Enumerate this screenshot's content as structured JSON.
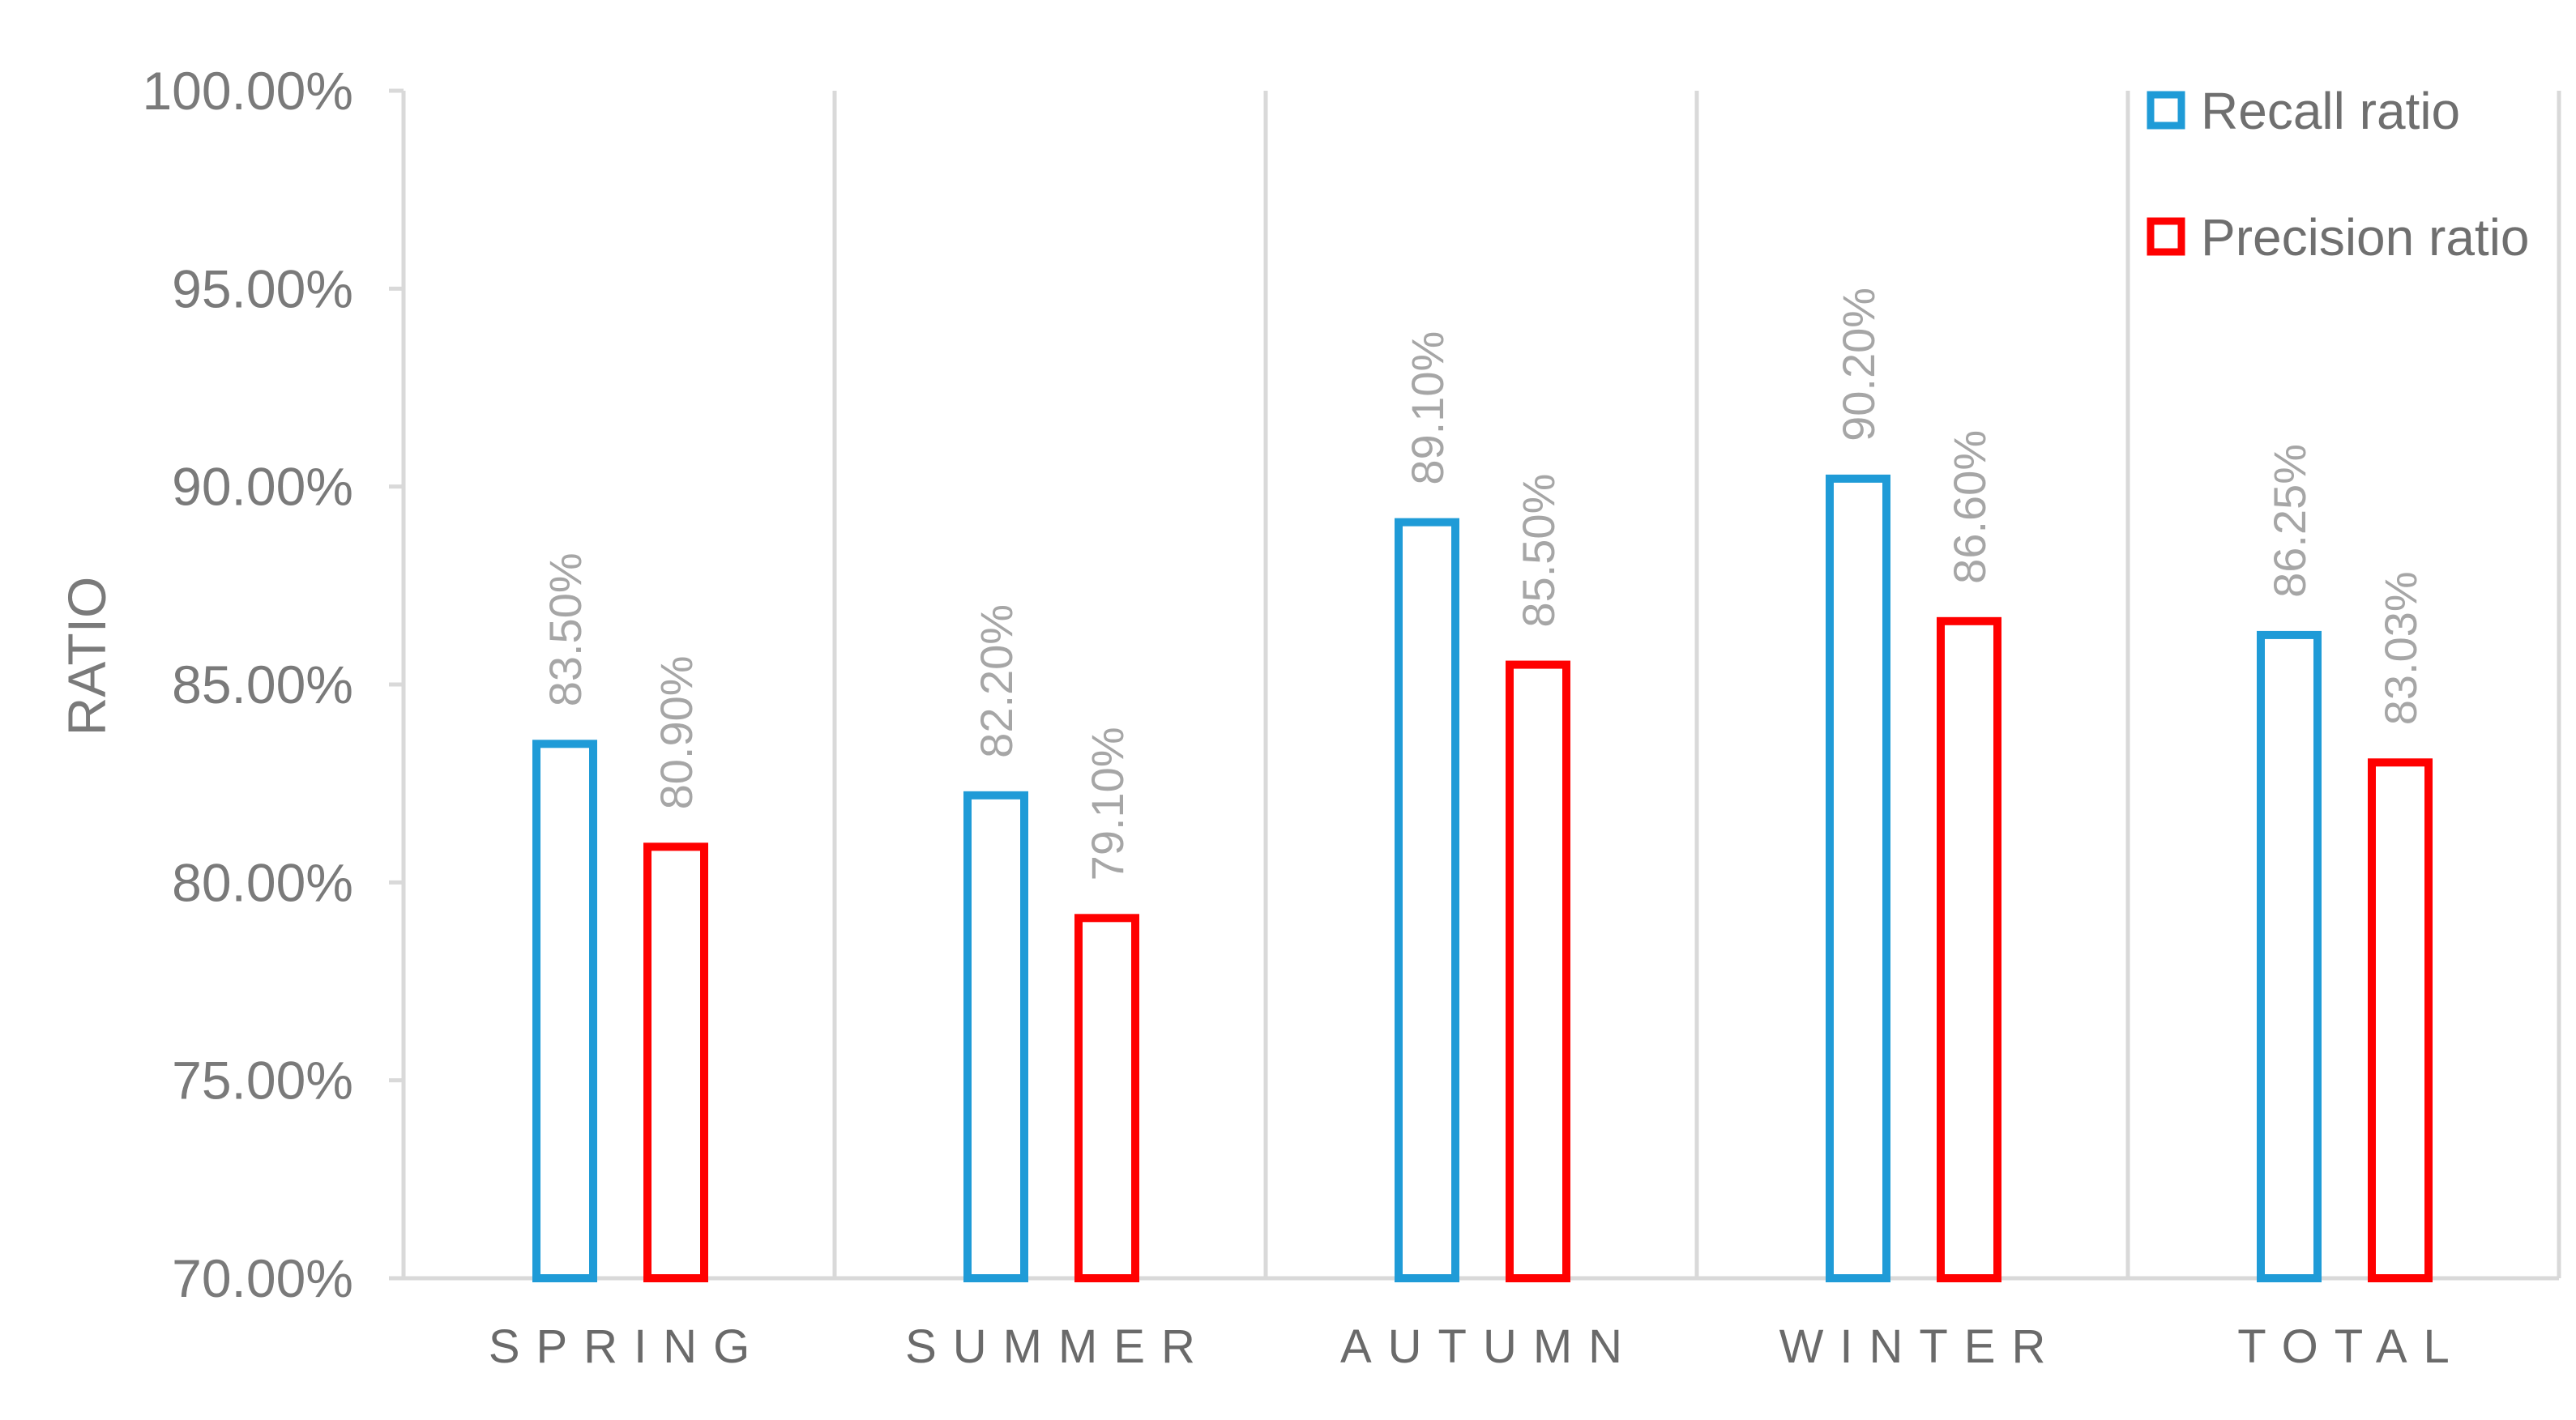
{
  "chart_data": {
    "type": "bar",
    "categories": [
      "SPRING",
      "SUMMER",
      "AUTUMN",
      "WINTER",
      "TOTAL"
    ],
    "series": [
      {
        "name": "Recall ratio",
        "color": "#1f9bd7",
        "values": [
          83.5,
          82.2,
          89.1,
          90.2,
          86.25
        ],
        "labels": [
          "83.50%",
          "82.20%",
          "89.10%",
          "90.20%",
          "86.25%"
        ]
      },
      {
        "name": "Precision ratio",
        "color": "#ff0000",
        "values": [
          80.9,
          79.1,
          85.5,
          86.6,
          83.03
        ],
        "labels": [
          "80.90%",
          "79.10%",
          "85.50%",
          "86.60%",
          "83.03%"
        ]
      }
    ],
    "title": "",
    "xlabel": "",
    "ylabel": "RATIO",
    "ylim": [
      70,
      100
    ],
    "y_ticks": [
      70,
      75,
      80,
      85,
      90,
      95,
      100
    ],
    "y_tick_labels": [
      "70.00%",
      "75.00%",
      "80.00%",
      "85.00%",
      "90.00%",
      "95.00%",
      "100.00%"
    ],
    "grid": "vertical category separators",
    "legend": "top-right",
    "bar_style": "hollow outlined bars",
    "colors": {
      "axis": "#d9d9d9",
      "text": "#7a7a7a"
    }
  }
}
